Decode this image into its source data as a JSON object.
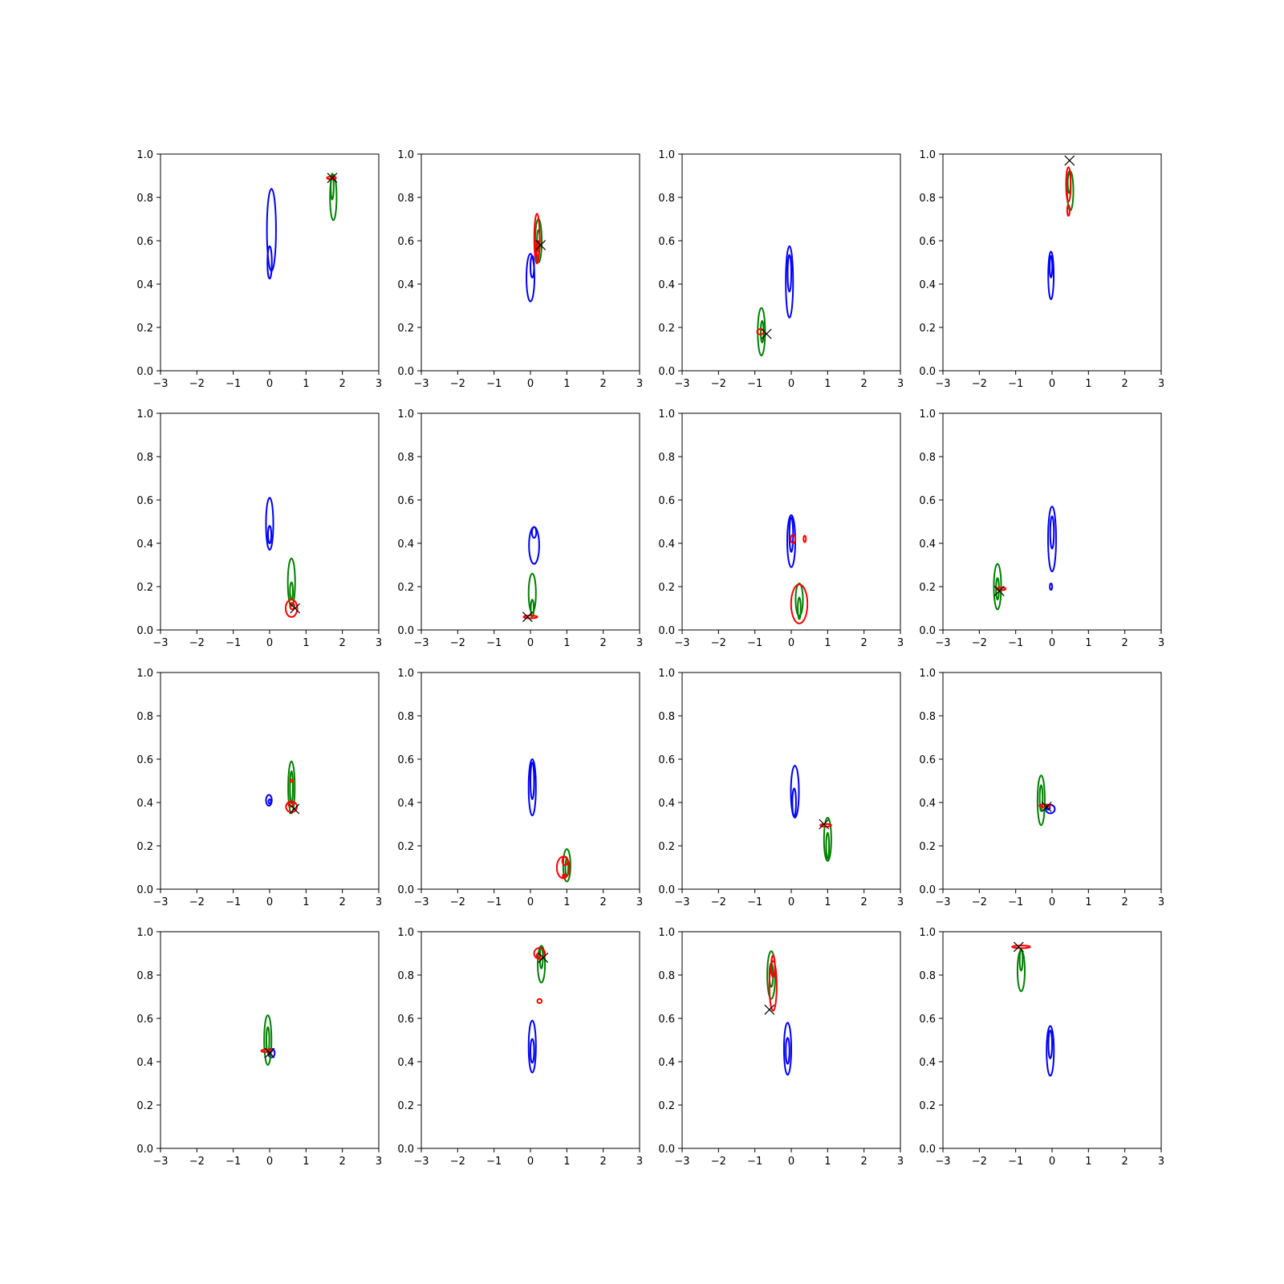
{
  "chart_data": {
    "type": "contour",
    "layout": {
      "rows": 4,
      "cols": 4
    },
    "shared_axes": {
      "xlim": [
        -3,
        3
      ],
      "ylim": [
        0,
        1
      ],
      "xticks": [
        -3,
        -2,
        -1,
        0,
        1,
        2,
        3
      ],
      "yticks": [
        0.0,
        0.2,
        0.4,
        0.6,
        0.8,
        1.0
      ],
      "xtick_labels": [
        "−3",
        "−2",
        "−1",
        "0",
        "1",
        "2",
        "3"
      ],
      "ytick_labels": [
        "0.0",
        "0.2",
        "0.4",
        "0.6",
        "0.8",
        "1.0"
      ],
      "grid": false
    },
    "series_colors": {
      "blue": "#0000ff",
      "green": "#008000",
      "red": "#ff0000",
      "marker": "#000000"
    },
    "panels": [
      {
        "blue": [
          {
            "cx": 0.05,
            "cy": 0.65,
            "w": 0.25,
            "h": 0.38
          },
          {
            "cx": 0.0,
            "cy": 0.5,
            "w": 0.12,
            "h": 0.15
          }
        ],
        "green": [
          {
            "cx": 1.75,
            "cy": 0.8,
            "w": 0.18,
            "h": 0.21
          },
          {
            "cx": 1.72,
            "cy": 0.85,
            "w": 0.08,
            "h": 0.12
          }
        ],
        "red": [
          {
            "cx": 1.7,
            "cy": 0.89,
            "w": 0.25,
            "h": 0.012
          }
        ],
        "marker": {
          "x": 1.72,
          "y": 0.89
        }
      },
      {
        "blue": [
          {
            "cx": 0.0,
            "cy": 0.43,
            "w": 0.22,
            "h": 0.22
          },
          {
            "cx": 0.05,
            "cy": 0.48,
            "w": 0.1,
            "h": 0.1
          }
        ],
        "green": [
          {
            "cx": 0.22,
            "cy": 0.6,
            "w": 0.18,
            "h": 0.2
          },
          {
            "cx": 0.22,
            "cy": 0.6,
            "w": 0.08,
            "h": 0.1
          }
        ],
        "red": [
          {
            "cx": 0.18,
            "cy": 0.61,
            "w": 0.15,
            "h": 0.23
          },
          {
            "cx": 0.2,
            "cy": 0.56,
            "w": 0.06,
            "h": 0.08
          }
        ],
        "marker": {
          "x": 0.28,
          "y": 0.58
        }
      },
      {
        "blue": [
          {
            "cx": -0.05,
            "cy": 0.41,
            "w": 0.2,
            "h": 0.33
          },
          {
            "cx": -0.05,
            "cy": 0.45,
            "w": 0.1,
            "h": 0.17
          }
        ],
        "green": [
          {
            "cx": -0.82,
            "cy": 0.18,
            "w": 0.2,
            "h": 0.22
          },
          {
            "cx": -0.8,
            "cy": 0.18,
            "w": 0.08,
            "h": 0.1
          }
        ],
        "red": [
          {
            "cx": -0.85,
            "cy": 0.18,
            "w": 0.18,
            "h": 0.025
          }
        ],
        "marker": {
          "x": -0.68,
          "y": 0.17
        }
      },
      {
        "blue": [
          {
            "cx": -0.03,
            "cy": 0.44,
            "w": 0.15,
            "h": 0.22
          },
          {
            "cx": -0.03,
            "cy": 0.48,
            "w": 0.07,
            "h": 0.1
          }
        ],
        "green": [
          {
            "cx": 0.5,
            "cy": 0.83,
            "w": 0.17,
            "h": 0.18
          },
          {
            "cx": 0.47,
            "cy": 0.87,
            "w": 0.08,
            "h": 0.1
          }
        ],
        "red": [
          {
            "cx": 0.45,
            "cy": 0.86,
            "w": 0.13,
            "h": 0.16
          },
          {
            "cx": 0.45,
            "cy": 0.74,
            "w": 0.05,
            "h": 0.05
          }
        ],
        "marker": {
          "x": 0.48,
          "y": 0.97
        }
      },
      {
        "blue": [
          {
            "cx": 0.0,
            "cy": 0.49,
            "w": 0.2,
            "h": 0.24
          },
          {
            "cx": 0.0,
            "cy": 0.44,
            "w": 0.09,
            "h": 0.08
          }
        ],
        "green": [
          {
            "cx": 0.6,
            "cy": 0.22,
            "w": 0.2,
            "h": 0.22
          },
          {
            "cx": 0.6,
            "cy": 0.18,
            "w": 0.08,
            "h": 0.08
          }
        ],
        "red": [
          {
            "cx": 0.6,
            "cy": 0.1,
            "w": 0.32,
            "h": 0.08
          },
          {
            "cx": 0.62,
            "cy": 0.11,
            "w": 0.12,
            "h": 0.03
          }
        ],
        "marker": {
          "x": 0.7,
          "y": 0.1
        }
      },
      {
        "blue": [
          {
            "cx": 0.1,
            "cy": 0.39,
            "w": 0.28,
            "h": 0.17
          },
          {
            "cx": 0.1,
            "cy": 0.45,
            "w": 0.12,
            "h": 0.05
          }
        ],
        "green": [
          {
            "cx": 0.05,
            "cy": 0.17,
            "w": 0.2,
            "h": 0.18
          },
          {
            "cx": 0.05,
            "cy": 0.1,
            "w": 0.08,
            "h": 0.08
          }
        ],
        "red": [
          {
            "cx": 0.0,
            "cy": 0.06,
            "w": 0.38,
            "h": 0.012
          }
        ],
        "marker": {
          "x": -0.08,
          "y": 0.06
        }
      },
      {
        "blue": [
          {
            "cx": 0.0,
            "cy": 0.41,
            "w": 0.22,
            "h": 0.24
          },
          {
            "cx": 0.0,
            "cy": 0.44,
            "w": 0.1,
            "h": 0.16
          }
        ],
        "green": [
          {
            "cx": 0.22,
            "cy": 0.14,
            "w": 0.2,
            "h": 0.15
          },
          {
            "cx": 0.22,
            "cy": 0.1,
            "w": 0.08,
            "h": 0.1
          }
        ],
        "red": [
          {
            "cx": 0.22,
            "cy": 0.12,
            "w": 0.45,
            "h": 0.18
          },
          {
            "cx": 0.05,
            "cy": 0.42,
            "w": 0.13,
            "h": 0.04
          },
          {
            "cx": 0.37,
            "cy": 0.42,
            "w": 0.05,
            "h": 0.03
          }
        ],
        "marker": null
      },
      {
        "blue": [
          {
            "cx": 0.0,
            "cy": 0.42,
            "w": 0.22,
            "h": 0.3
          },
          {
            "cx": 0.0,
            "cy": 0.45,
            "w": 0.1,
            "h": 0.15
          },
          {
            "cx": -0.03,
            "cy": 0.2,
            "w": 0.03,
            "h": 0.03
          }
        ],
        "green": [
          {
            "cx": -1.5,
            "cy": 0.2,
            "w": 0.2,
            "h": 0.21
          },
          {
            "cx": -1.5,
            "cy": 0.19,
            "w": 0.08,
            "h": 0.1
          }
        ],
        "red": [
          {
            "cx": -1.4,
            "cy": 0.19,
            "w": 0.25,
            "h": 0.012
          }
        ],
        "marker": {
          "x": -1.45,
          "y": 0.18
        }
      },
      {
        "blue": [
          {
            "cx": -0.02,
            "cy": 0.41,
            "w": 0.16,
            "h": 0.05
          },
          {
            "cx": 0.0,
            "cy": 0.405,
            "w": 0.06,
            "h": 0.02
          }
        ],
        "green": [
          {
            "cx": 0.6,
            "cy": 0.47,
            "w": 0.18,
            "h": 0.24
          },
          {
            "cx": 0.6,
            "cy": 0.47,
            "w": 0.08,
            "h": 0.15
          }
        ],
        "red": [
          {
            "cx": 0.6,
            "cy": 0.38,
            "w": 0.3,
            "h": 0.05
          },
          {
            "cx": 0.58,
            "cy": 0.39,
            "w": 0.12,
            "h": 0.02
          },
          {
            "cx": 0.6,
            "cy": 0.5,
            "w": 0.02,
            "h": 0.005
          }
        ],
        "marker": {
          "x": 0.68,
          "y": 0.37
        }
      },
      {
        "blue": [
          {
            "cx": 0.05,
            "cy": 0.47,
            "w": 0.2,
            "h": 0.26
          },
          {
            "cx": 0.05,
            "cy": 0.5,
            "w": 0.1,
            "h": 0.17
          }
        ],
        "green": [
          {
            "cx": 1.0,
            "cy": 0.11,
            "w": 0.2,
            "h": 0.15
          },
          {
            "cx": 1.0,
            "cy": 0.1,
            "w": 0.08,
            "h": 0.08
          }
        ],
        "red": [
          {
            "cx": 0.9,
            "cy": 0.1,
            "w": 0.35,
            "h": 0.1
          },
          {
            "cx": 0.95,
            "cy": 0.13,
            "w": 0.15,
            "h": 0.04
          },
          {
            "cx": 0.92,
            "cy": 0.06,
            "w": 0.06,
            "h": 0.02
          }
        ],
        "marker": null
      },
      {
        "blue": [
          {
            "cx": 0.1,
            "cy": 0.45,
            "w": 0.22,
            "h": 0.24
          },
          {
            "cx": 0.08,
            "cy": 0.4,
            "w": 0.1,
            "h": 0.13
          }
        ],
        "green": [
          {
            "cx": 1.0,
            "cy": 0.23,
            "w": 0.2,
            "h": 0.2
          },
          {
            "cx": 1.0,
            "cy": 0.2,
            "w": 0.08,
            "h": 0.12
          }
        ],
        "red": [
          {
            "cx": 0.95,
            "cy": 0.295,
            "w": 0.3,
            "h": 0.012
          }
        ],
        "marker": {
          "x": 0.9,
          "y": 0.3
        }
      },
      {
        "blue": [
          {
            "cx": -0.05,
            "cy": 0.37,
            "w": 0.25,
            "h": 0.04
          },
          {
            "cx": -0.1,
            "cy": 0.375,
            "w": 0.08,
            "h": 0.015
          }
        ],
        "green": [
          {
            "cx": -0.3,
            "cy": 0.41,
            "w": 0.2,
            "h": 0.23
          },
          {
            "cx": -0.3,
            "cy": 0.42,
            "w": 0.08,
            "h": 0.12
          }
        ],
        "red": [
          {
            "cx": -0.2,
            "cy": 0.385,
            "w": 0.3,
            "h": 0.012
          }
        ],
        "marker": {
          "x": -0.15,
          "y": 0.38
        }
      },
      {
        "blue": [
          {
            "cx": 0.05,
            "cy": 0.44,
            "w": 0.18,
            "h": 0.04
          },
          {
            "cx": 0.0,
            "cy": 0.445,
            "w": 0.07,
            "h": 0.02
          }
        ],
        "green": [
          {
            "cx": -0.05,
            "cy": 0.5,
            "w": 0.2,
            "h": 0.23
          },
          {
            "cx": -0.05,
            "cy": 0.5,
            "w": 0.08,
            "h": 0.12
          }
        ],
        "red": [
          {
            "cx": -0.08,
            "cy": 0.45,
            "w": 0.3,
            "h": 0.012
          }
        ],
        "marker": {
          "x": 0.0,
          "y": 0.44
        }
      },
      {
        "blue": [
          {
            "cx": 0.05,
            "cy": 0.47,
            "w": 0.2,
            "h": 0.24
          },
          {
            "cx": 0.05,
            "cy": 0.45,
            "w": 0.1,
            "h": 0.11
          }
        ],
        "green": [
          {
            "cx": 0.3,
            "cy": 0.85,
            "w": 0.2,
            "h": 0.17
          },
          {
            "cx": 0.3,
            "cy": 0.88,
            "w": 0.08,
            "h": 0.1
          }
        ],
        "red": [
          {
            "cx": 0.25,
            "cy": 0.9,
            "w": 0.3,
            "h": 0.05
          },
          {
            "cx": 0.22,
            "cy": 0.89,
            "w": 0.1,
            "h": 0.02
          },
          {
            "cx": 0.25,
            "cy": 0.68,
            "w": 0.12,
            "h": 0.02
          }
        ],
        "marker": {
          "x": 0.35,
          "y": 0.88
        }
      },
      {
        "blue": [
          {
            "cx": -0.1,
            "cy": 0.46,
            "w": 0.2,
            "h": 0.24
          },
          {
            "cx": -0.1,
            "cy": 0.45,
            "w": 0.1,
            "h": 0.12
          }
        ],
        "green": [
          {
            "cx": -0.55,
            "cy": 0.8,
            "w": 0.22,
            "h": 0.22
          },
          {
            "cx": -0.55,
            "cy": 0.8,
            "w": 0.1,
            "h": 0.11
          }
        ],
        "red": [
          {
            "cx": -0.5,
            "cy": 0.75,
            "w": 0.2,
            "h": 0.23
          },
          {
            "cx": -0.5,
            "cy": 0.84,
            "w": 0.1,
            "h": 0.1
          }
        ],
        "marker": {
          "x": -0.6,
          "y": 0.64
        }
      },
      {
        "blue": [
          {
            "cx": -0.05,
            "cy": 0.45,
            "w": 0.2,
            "h": 0.23
          },
          {
            "cx": -0.05,
            "cy": 0.48,
            "w": 0.1,
            "h": 0.13
          }
        ],
        "green": [
          {
            "cx": -0.85,
            "cy": 0.82,
            "w": 0.2,
            "h": 0.19
          },
          {
            "cx": -0.85,
            "cy": 0.87,
            "w": 0.08,
            "h": 0.1
          }
        ],
        "red": [
          {
            "cx": -0.85,
            "cy": 0.93,
            "w": 0.5,
            "h": 0.012
          }
        ],
        "marker": {
          "x": -0.92,
          "y": 0.93
        }
      }
    ]
  }
}
